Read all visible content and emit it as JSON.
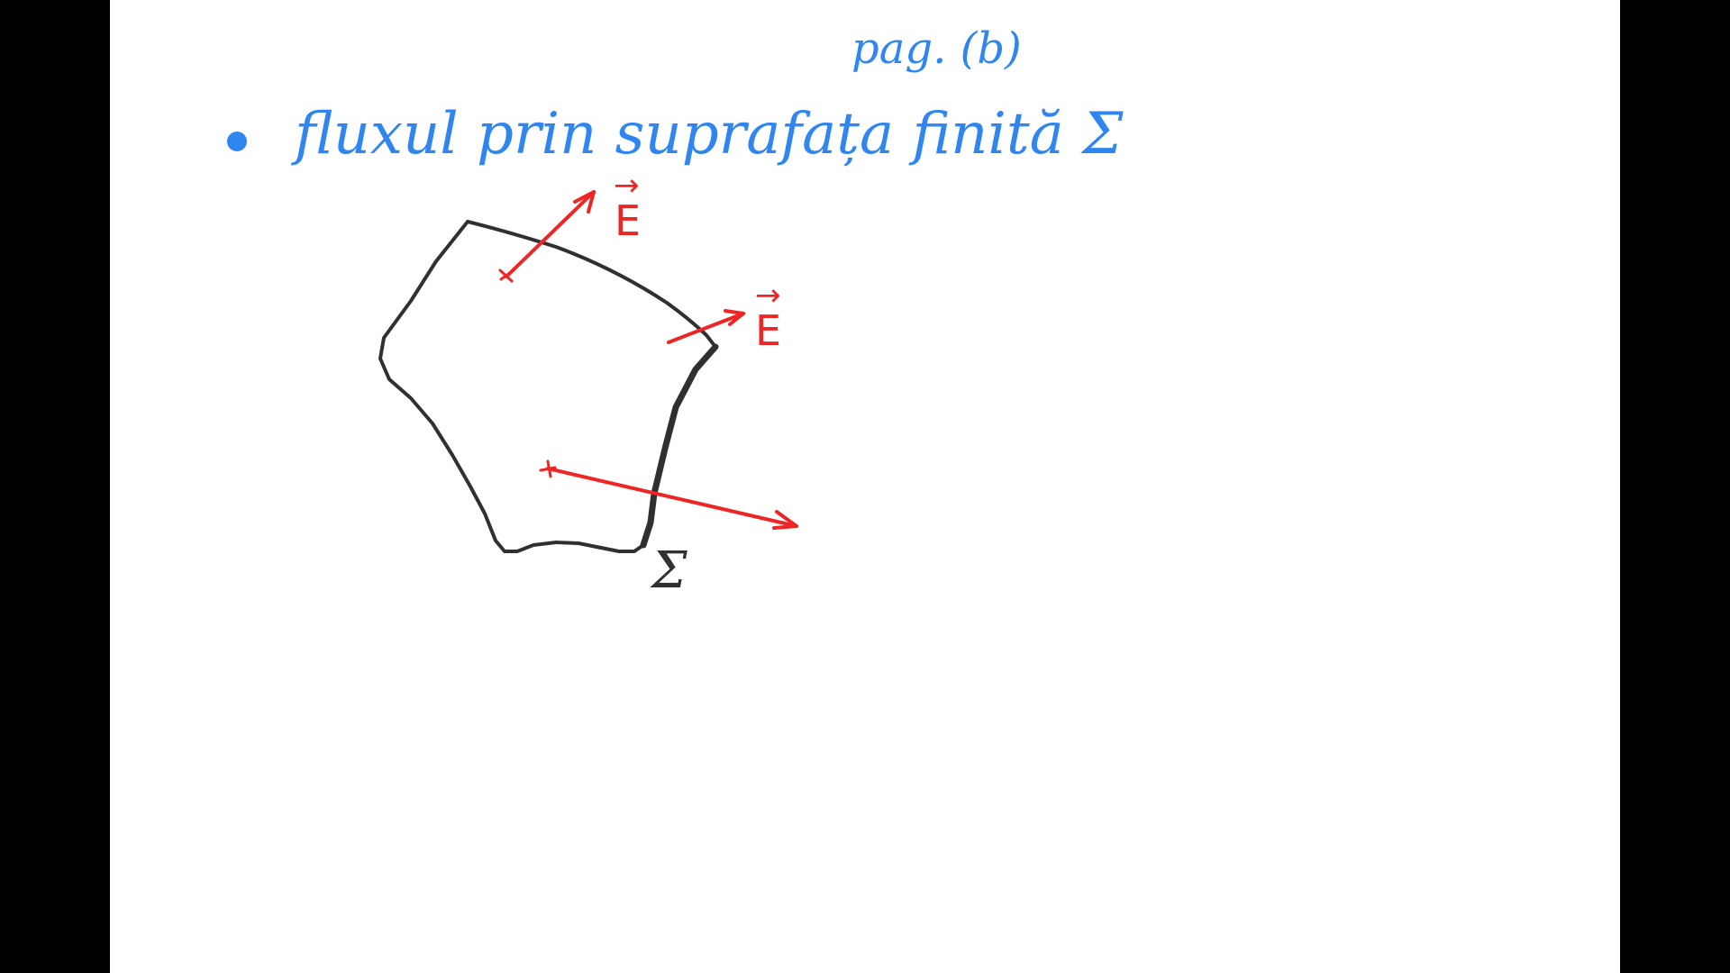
{
  "colors": {
    "background": "#ffffff",
    "letterbox": "#000000",
    "ink_blue": "#2f86f0",
    "ink_red": "#ef2424",
    "ink_black": "#303030"
  },
  "page_label": "pag. (b)",
  "bullet_text": "fluxul prin suprafața finită Σ",
  "surface_label": "Σ",
  "vectors": [
    {
      "label": "E",
      "arrow": "→"
    },
    {
      "label": "E",
      "arrow": "→"
    }
  ]
}
